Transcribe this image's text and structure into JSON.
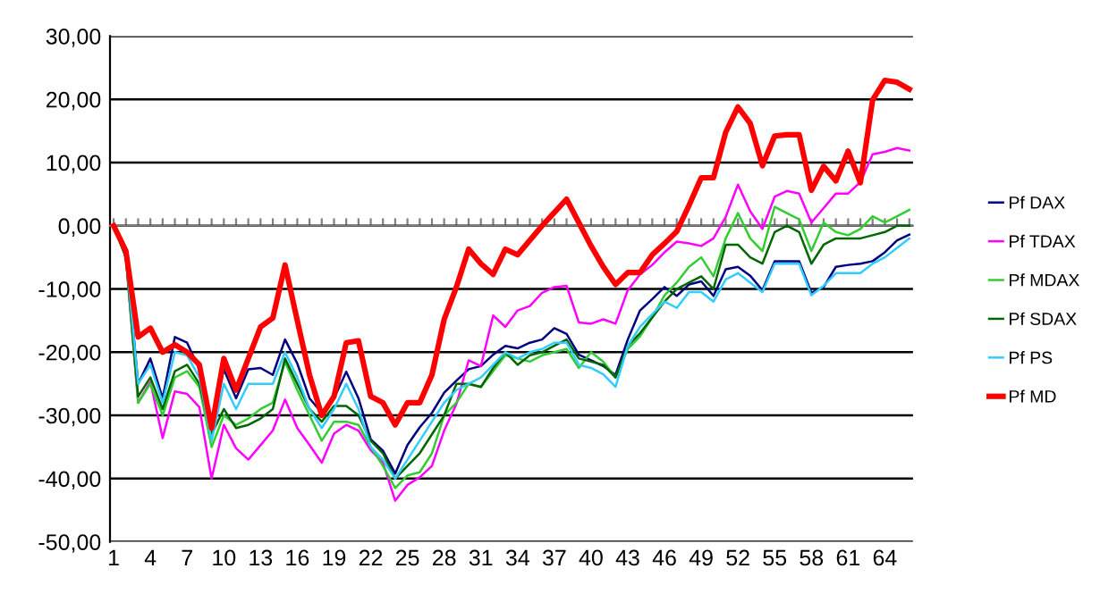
{
  "chart_data": {
    "type": "line",
    "categories": [
      "1",
      null,
      null,
      "4",
      null,
      null,
      "7",
      null,
      null,
      "10",
      null,
      null,
      "13",
      null,
      null,
      "16",
      null,
      null,
      "19",
      null,
      null,
      "22",
      null,
      null,
      "25",
      null,
      null,
      "28",
      null,
      null,
      "31",
      null,
      null,
      "34",
      null,
      null,
      "37",
      null,
      null,
      "40",
      null,
      null,
      "43",
      null,
      null,
      "46",
      null,
      null,
      "49",
      null,
      null,
      "52",
      null,
      null,
      "55",
      null,
      null,
      "58",
      null,
      null,
      "61",
      null,
      null,
      "64",
      null,
      null
    ],
    "series": [
      {
        "name": "Pf DAX",
        "color": "#000080",
        "values": [
          0,
          -4,
          -25,
          -21,
          -27.3,
          -17.6,
          -18.5,
          -22.7,
          -31.5,
          -22.7,
          -27.3,
          -22.7,
          -22.5,
          -23.6,
          -18,
          -21.8,
          -27.3,
          -29.6,
          -27.3,
          -23.1,
          -27.3,
          -33.8,
          -35.6,
          -39.2,
          -34.7,
          -31.9,
          -29.6,
          -26.4,
          -24.5,
          -22.7,
          -22.2,
          -20.4,
          -19,
          -19.4,
          -18.5,
          -18,
          -16.2,
          -17.1,
          -20.4,
          -21.3,
          -22.2,
          -23.6,
          -18,
          -13.4,
          -11.6,
          -9.7,
          -11.1,
          -9.3,
          -8.8,
          -11.1,
          -6.9,
          -6.5,
          -7.9,
          -10.2,
          -5.6,
          -5.6,
          -5.6,
          -10.6,
          -9.7,
          -6.5,
          -6.2,
          -6,
          -5.6,
          -4.2,
          -2.3,
          -1.4
        ]
      },
      {
        "name": "Pf TDAX",
        "color": "#ff00ff",
        "values": [
          0,
          -5,
          -28,
          -24.7,
          -33.6,
          -26.2,
          -26.6,
          -28.7,
          -40,
          -31.5,
          -35.2,
          -37,
          -34.7,
          -32.4,
          -27.5,
          -32,
          -34.7,
          -37.5,
          -32.9,
          -31.5,
          -32.4,
          -35.5,
          -37.5,
          -43.5,
          -41,
          -39.8,
          -38,
          -32.4,
          -28.2,
          -21.3,
          -22.2,
          -14.2,
          -16,
          -13.4,
          -12.7,
          -10.6,
          -9.7,
          -9.5,
          -15.3,
          -15.5,
          -14.8,
          -15.5,
          -10.2,
          -7.7,
          -6.2,
          -4.2,
          -2.5,
          -2.8,
          -3.2,
          -2,
          1.4,
          6.5,
          2.3,
          -0.5,
          4.6,
          5.5,
          5.1,
          0.5,
          2.8,
          5.1,
          5.1,
          6.9,
          11.3,
          11.7,
          12.3,
          11.9
        ]
      },
      {
        "name": "Pf MDAX",
        "color": "#33cc33",
        "values": [
          0,
          -5,
          -28,
          -25,
          -30,
          -24,
          -23,
          -25.5,
          -35,
          -30,
          -31.5,
          -30.5,
          -29,
          -28,
          -21.5,
          -26,
          -30,
          -34,
          -31,
          -31,
          -31.5,
          -35,
          -38,
          -41.5,
          -39.5,
          -39,
          -36,
          -30,
          -28,
          -25,
          -25.5,
          -23,
          -20.5,
          -21,
          -21.5,
          -20.5,
          -20,
          -19.5,
          -22.5,
          -20,
          -21.5,
          -24,
          -19.5,
          -17.5,
          -14.5,
          -11,
          -9,
          -6.5,
          -5,
          -8,
          -2,
          2,
          -2,
          -4,
          3,
          2,
          1,
          -4,
          0.5,
          -1,
          -1.5,
          -0.5,
          1.5,
          0.5,
          1.5,
          2.5
        ]
      },
      {
        "name": "Pf SDAX",
        "color": "#006600",
        "values": [
          0,
          -5,
          -27,
          -24,
          -29,
          -23,
          -22,
          -25,
          -33,
          -29,
          -32,
          -31.5,
          -30.5,
          -29,
          -21,
          -25,
          -29,
          -31,
          -28.5,
          -28.5,
          -30,
          -34,
          -36,
          -40,
          -38,
          -36,
          -33,
          -30,
          -25,
          -25,
          -25.5,
          -22.5,
          -20,
          -22,
          -20.5,
          -20,
          -19,
          -18,
          -21,
          -21.5,
          -22,
          -24,
          -19,
          -17,
          -14.5,
          -12,
          -10,
          -9,
          -8,
          -10,
          -3,
          -3,
          -5,
          -6,
          -1,
          0,
          -1,
          -6,
          -3,
          -2,
          -2,
          -2,
          -1.5,
          -1,
          0,
          0
        ]
      },
      {
        "name": "Pf PS",
        "color": "#33ccff",
        "values": [
          0,
          -4.5,
          -25,
          -22,
          -28,
          -20,
          -20.5,
          -24,
          -34,
          -25,
          -29,
          -25,
          -25,
          -25,
          -20,
          -24,
          -29,
          -32,
          -29,
          -25,
          -29,
          -35,
          -37,
          -40,
          -37,
          -34,
          -31,
          -28,
          -26,
          -25,
          -24,
          -22,
          -20,
          -21,
          -20,
          -19.5,
          -18.5,
          -18.5,
          -22,
          -22.5,
          -23.5,
          -25.5,
          -19,
          -16,
          -14,
          -12,
          -13,
          -10.5,
          -10.5,
          -12,
          -8.5,
          -7.5,
          -9,
          -10.5,
          -6,
          -6,
          -6,
          -11,
          -9.5,
          -7.5,
          -7.5,
          -7.5,
          -6,
          -5,
          -3.5,
          -2
        ]
      },
      {
        "name": "Pf MD",
        "color": "#ff0000",
        "values": [
          0,
          -4,
          -17.6,
          -16.2,
          -20,
          -18.8,
          -20,
          -22,
          -32,
          -21,
          -26,
          -21,
          -16,
          -14.6,
          -6.2,
          -15,
          -23.6,
          -30,
          -27,
          -18.5,
          -18.2,
          -27,
          -28,
          -31.5,
          -28,
          -28,
          -23.6,
          -14.8,
          -9.7,
          -3.7,
          -6,
          -7.7,
          -3.7,
          -4.6,
          -2.3,
          0,
          2.1,
          4.2,
          0.5,
          -3.2,
          -6.5,
          -9.3,
          -7.4,
          -7.4,
          -4.6,
          -2.8,
          -0.9,
          3.2,
          7.6,
          7.6,
          14.8,
          18.8,
          16.2,
          9.5,
          14.2,
          14.4,
          14.4,
          5.6,
          9.4,
          7.1,
          11.8,
          6.8,
          19.9,
          23,
          22.7,
          21.6
        ]
      }
    ],
    "ylim": [
      -50,
      30
    ],
    "yticks": [
      {
        "value": -50,
        "label": "-50,00"
      },
      {
        "value": -40,
        "label": "-40,00"
      },
      {
        "value": -30,
        "label": "-30,00"
      },
      {
        "value": -20,
        "label": "-20,00"
      },
      {
        "value": -10,
        "label": "-10,00"
      },
      {
        "value": 0,
        "label": "0,00"
      },
      {
        "value": 10,
        "label": "10,00"
      },
      {
        "value": 20,
        "label": "20,00"
      },
      {
        "value": 30,
        "label": "30,00"
      }
    ],
    "grid": "y",
    "legend": "right",
    "marker": "none",
    "line_style": "solid"
  }
}
